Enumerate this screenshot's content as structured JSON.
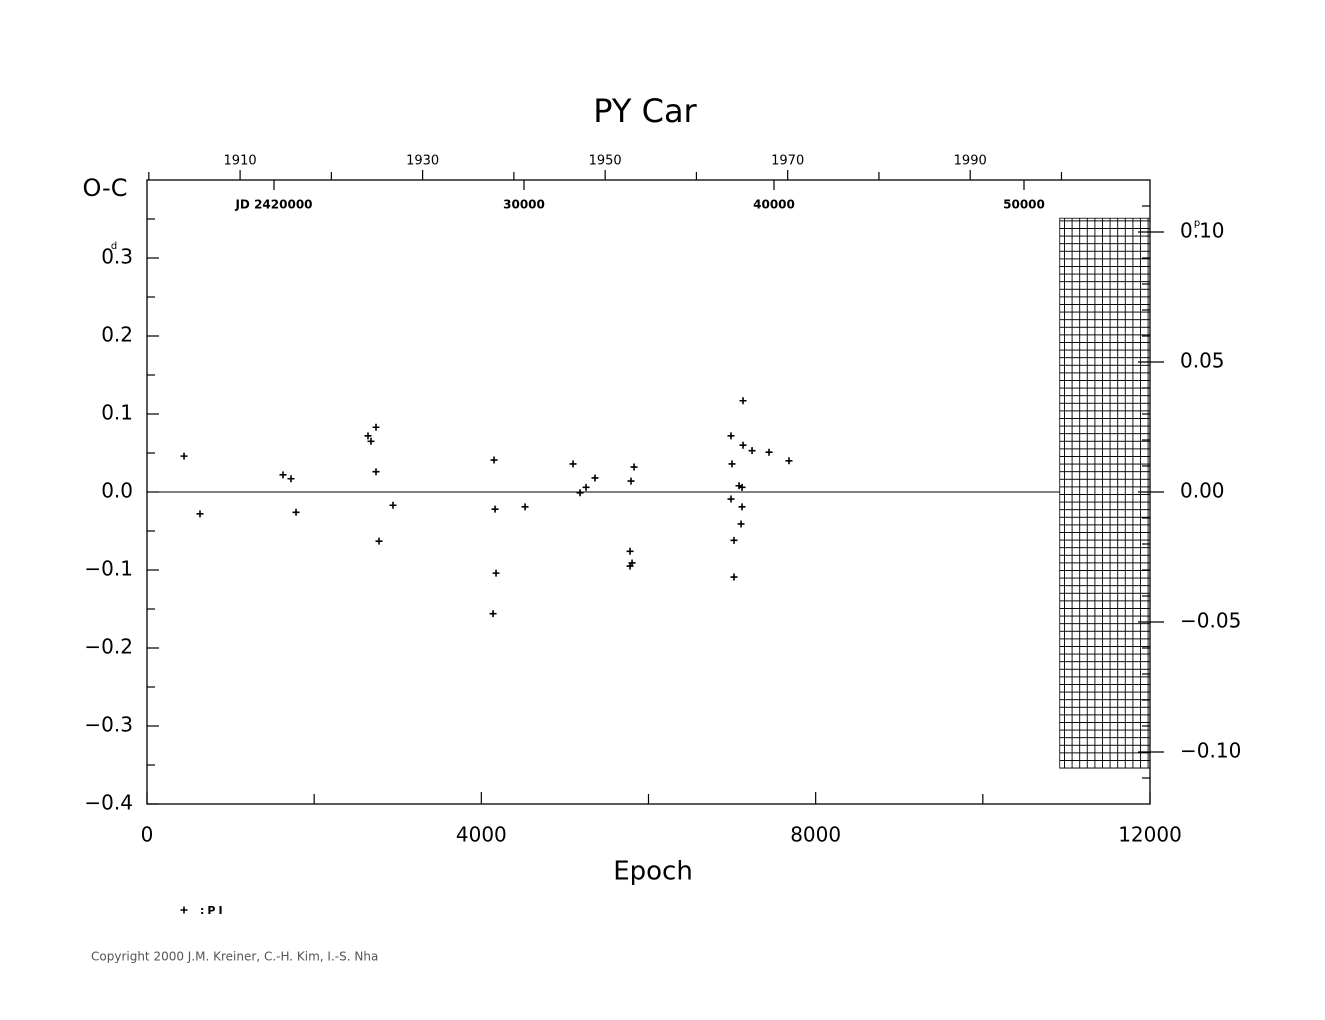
{
  "chart_data": {
    "type": "scatter",
    "title": "PY Car",
    "y_label": "O-C",
    "y_unit": "d",
    "y2_unit": "p",
    "x_label": "Epoch",
    "copyright": "Copyright 2000 J.M. Kreiner, C.-H. Kim, I.-S. Nha",
    "xlim": [
      0,
      12000
    ],
    "xticks": [
      0,
      4000,
      8000,
      12000
    ],
    "xminor_ticks": [
      2000,
      6000,
      10000
    ],
    "ylim": [
      -0.4,
      0.4
    ],
    "yticks": [
      {
        "value": -0.4,
        "label": "−0.4"
      },
      {
        "value": -0.3,
        "label": "−0.3"
      },
      {
        "value": -0.2,
        "label": "−0.2"
      },
      {
        "value": -0.1,
        "label": "−0.1"
      },
      {
        "value": 0,
        "label": "0.0"
      },
      0.1,
      0.2,
      0.3
    ],
    "yminor_ticks": [
      -0.35,
      -0.25,
      -0.15,
      -0.05,
      0.05,
      0.15,
      0.25,
      0.35
    ],
    "y2lim": [
      -0.12,
      0.12
    ],
    "y2ticks": [
      {
        "value": -0.1,
        "label": "−0.10"
      },
      {
        "value": -0.05,
        "label": "−0.05"
      },
      {
        "value": 0,
        "label": "0.00"
      },
      {
        "value": 0.05,
        "label": "0.05"
      },
      {
        "value": 0.1,
        "label": "0.10"
      }
    ],
    "y2minor_ticks": [
      -0.11,
      -0.09,
      -0.08,
      -0.07,
      -0.06,
      -0.04,
      -0.03,
      -0.02,
      -0.01,
      0.01,
      0.02,
      0.03,
      0.04,
      0.06,
      0.07,
      0.08,
      0.09,
      0.11
    ],
    "year_lim": [
      1899.8,
      2009.7
    ],
    "year_ticks": [
      1910,
      1930,
      1950,
      1970,
      1990
    ],
    "year_minor_ticks": [
      1900,
      1920,
      1940,
      1960,
      1980,
      2000
    ],
    "jd_lim": [
      14920,
      55040
    ],
    "jd_ticks": [
      {
        "value": 20000,
        "label": "JD 2420000"
      },
      {
        "value": 30000,
        "label": "30000"
      },
      {
        "value": 40000,
        "label": "40000"
      },
      {
        "value": 50000,
        "label": "50000"
      }
    ],
    "zero_line": true,
    "shaded_region": {
      "xlim": [
        10920,
        12000
      ],
      "ylim": [
        -0.354,
        0.351
      ]
    },
    "series": [
      {
        "name": ":PI",
        "color": "#000000",
        "x": [
          443,
          634,
          1627,
          1723,
          1783,
          2644,
          2680,
          2740,
          2740,
          2776,
          2943,
          4152,
          4164,
          4140,
          4176,
          4523,
          5097,
          5181,
          5253,
          5360,
          5827,
          5791,
          5779,
          5803,
          5779,
          6987,
          6999,
          6987,
          7023,
          7023,
          7131,
          7131,
          7239,
          7442,
          7681,
          7083,
          7119,
          7119,
          7107
        ],
        "values": [
          0.046,
          -0.028,
          0.022,
          0.017,
          -0.026,
          0.072,
          0.065,
          0.083,
          0.026,
          -0.063,
          -0.017,
          0.041,
          -0.022,
          -0.156,
          -0.104,
          -0.019,
          0.036,
          -0.001,
          0.006,
          0.018,
          0.032,
          0.014,
          -0.076,
          -0.091,
          -0.095,
          0.072,
          0.036,
          -0.009,
          -0.062,
          -0.109,
          0.117,
          0.06,
          0.053,
          0.051,
          0.04,
          0.008,
          0.006,
          -0.019,
          -0.041
        ]
      }
    ]
  }
}
